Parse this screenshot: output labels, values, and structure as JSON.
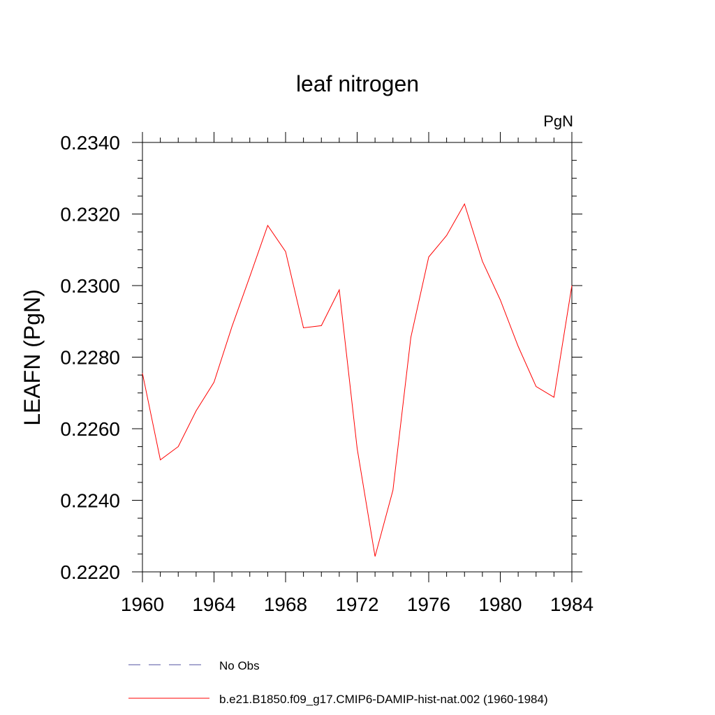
{
  "chart_data": {
    "type": "line",
    "title": "leaf nitrogen",
    "units": "PgN",
    "xlabel": "",
    "ylabel": "LEAFN  (PgN)",
    "xlim": [
      1960,
      1984
    ],
    "ylim": [
      0.222,
      0.234
    ],
    "x_ticks": [
      "1960",
      "1964",
      "1968",
      "1972",
      "1976",
      "1980",
      "1984"
    ],
    "y_ticks": [
      "0.2220",
      "0.2240",
      "0.2260",
      "0.2280",
      "0.2300",
      "0.2320",
      "0.2340"
    ],
    "x": [
      1960,
      1961,
      1962,
      1963,
      1964,
      1965,
      1966,
      1967,
      1968,
      1969,
      1970,
      1971,
      1972,
      1973,
      1974,
      1975,
      1976,
      1977,
      1978,
      1979,
      1980,
      1981,
      1982,
      1983,
      1984
    ],
    "series": [
      {
        "name": "b.e21.B1850.f09_g17.CMIP6-DAMIP-hist-nat.002 (1960-1984)",
        "color": "#ff0000",
        "style": "solid",
        "values": [
          0.22755,
          0.22513,
          0.2255,
          0.2265,
          0.2273,
          0.22885,
          0.23025,
          0.23168,
          0.23095,
          0.22882,
          0.22888,
          0.22988,
          0.22545,
          0.22243,
          0.22428,
          0.22855,
          0.2308,
          0.2314,
          0.23228,
          0.23068,
          0.2296,
          0.2283,
          0.22718,
          0.22688,
          0.23
        ]
      }
    ],
    "legend": [
      {
        "label": "No Obs",
        "color": "#5050a0",
        "style": "dashed"
      },
      {
        "label": "b.e21.B1850.f09_g17.CMIP6-DAMIP-hist-nat.002 (1960-1984)",
        "color": "#ff0000",
        "style": "solid"
      }
    ],
    "legend_position": "bottom",
    "grid": false
  }
}
